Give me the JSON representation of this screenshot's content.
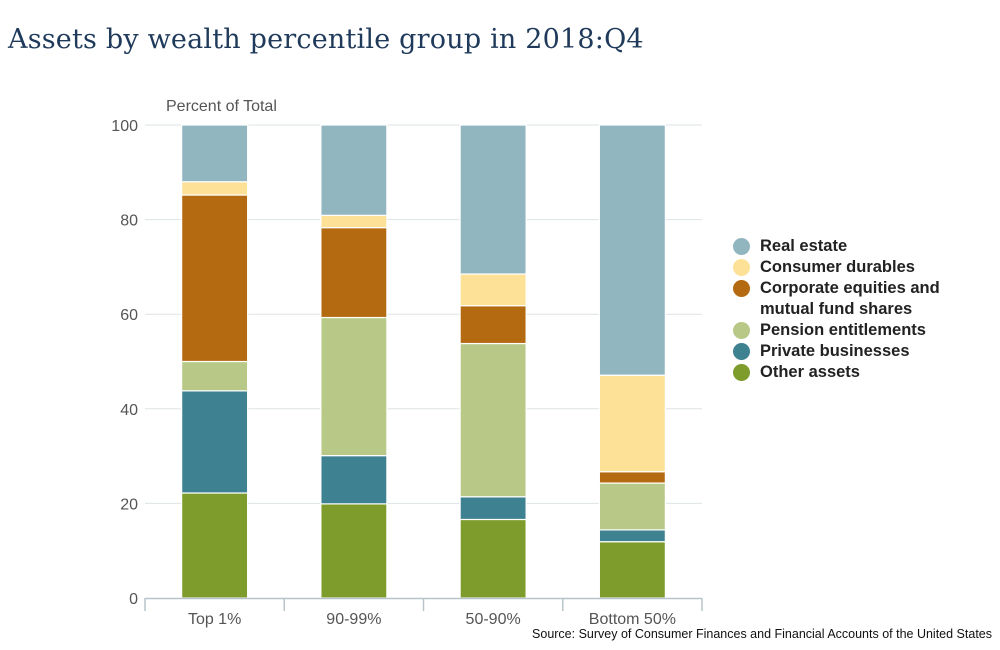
{
  "chart_data": {
    "type": "bar",
    "stacked": true,
    "title": "Assets by wealth percentile group in 2018:Q4",
    "ylabel": "Percent of Total",
    "xlabel": "",
    "ylim": [
      0,
      100
    ],
    "yticks": [
      0,
      20,
      40,
      60,
      80,
      100
    ],
    "grid": true,
    "legend_position": "right",
    "categories": [
      "Top 1%",
      "90-99%",
      "50-90%",
      "Bottom 50%"
    ],
    "series": [
      {
        "name": "Other assets",
        "color": "#7e9c2c",
        "values": [
          22.2,
          19.9,
          16.6,
          11.9
        ]
      },
      {
        "name": "Private businesses",
        "color": "#3e8191",
        "values": [
          21.6,
          10.2,
          4.8,
          2.5
        ]
      },
      {
        "name": "Pension entitlements",
        "color": "#b7c887",
        "values": [
          6.2,
          29.2,
          32.4,
          9.9
        ]
      },
      {
        "name": "Corporate equities and mutual fund shares",
        "color": "#b36a10",
        "values": [
          35.2,
          19.0,
          8.0,
          2.4
        ]
      },
      {
        "name": "Consumer durables",
        "color": "#fce197",
        "values": [
          2.8,
          2.6,
          6.7,
          20.4
        ]
      },
      {
        "name": "Real estate",
        "color": "#92b6c0",
        "values": [
          12.0,
          19.1,
          31.5,
          52.9
        ]
      }
    ],
    "source": "Source: Survey of Consumer Finances and Financial Accounts of the United States"
  },
  "legend": [
    {
      "label": "Real estate",
      "color": "#92b6c0"
    },
    {
      "label": "Consumer durables",
      "color": "#fce197"
    },
    {
      "label": "Corporate equities and\nmutual fund shares",
      "color": "#b36a10"
    },
    {
      "label": "Pension entitlements",
      "color": "#b7c887"
    },
    {
      "label": "Private businesses",
      "color": "#3e8191"
    },
    {
      "label": "Other assets",
      "color": "#7e9c2c"
    }
  ]
}
